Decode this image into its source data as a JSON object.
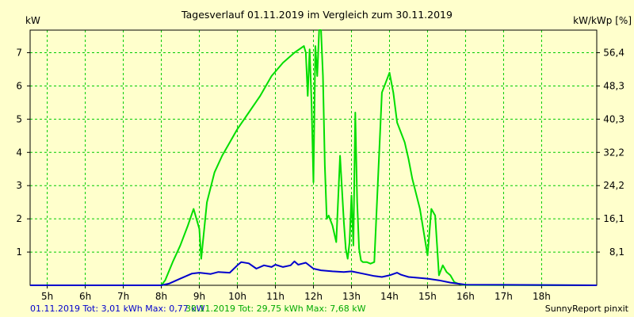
{
  "chart_data": {
    "type": "line",
    "title": "Tagesverlauf 01.11.2019 im Vergleich zum 30.11.2019",
    "ylabel_left": "kW",
    "ylabel_right": "kW/kWp [%]",
    "x_ticks": [
      "5h",
      "6h",
      "7h",
      "8h",
      "9h",
      "10h",
      "11h",
      "12h",
      "13h",
      "14h",
      "15h",
      "16h",
      "17h",
      "18h"
    ],
    "y_ticks_left": [
      "1",
      "2",
      "3",
      "4",
      "5",
      "6",
      "7"
    ],
    "y_ticks_right": [
      "8,1",
      "16,1",
      "24,2",
      "32,2",
      "40,3",
      "48,3",
      "56,4"
    ],
    "xlim": [
      4.55,
      19.45
    ],
    "ylim": [
      0,
      7.68
    ],
    "grid": true,
    "series": [
      {
        "name": "01.11.2019",
        "color": "#0000cc",
        "x": [
          4.55,
          8.0,
          8.2,
          8.5,
          8.8,
          9.0,
          9.3,
          9.5,
          9.8,
          10.0,
          10.1,
          10.3,
          10.5,
          10.7,
          10.9,
          11.0,
          11.2,
          11.4,
          11.5,
          11.6,
          11.8,
          12.0,
          12.2,
          12.5,
          12.8,
          13.0,
          13.3,
          13.6,
          13.8,
          14.0,
          14.2,
          14.3,
          14.5,
          14.8,
          15.0,
          15.3,
          15.6,
          15.8,
          16.0,
          19.45
        ],
        "y": [
          0,
          0,
          0.05,
          0.2,
          0.35,
          0.38,
          0.34,
          0.4,
          0.38,
          0.6,
          0.7,
          0.66,
          0.5,
          0.6,
          0.55,
          0.62,
          0.55,
          0.6,
          0.72,
          0.62,
          0.68,
          0.5,
          0.45,
          0.42,
          0.4,
          0.42,
          0.35,
          0.28,
          0.25,
          0.3,
          0.38,
          0.32,
          0.25,
          0.22,
          0.2,
          0.15,
          0.08,
          0.05,
          0.02,
          0
        ]
      },
      {
        "name": "30.11.2019",
        "color": "#00dd00",
        "x": [
          4.55,
          8.0,
          8.1,
          8.3,
          8.5,
          8.7,
          8.85,
          9.0,
          9.05,
          9.2,
          9.4,
          9.6,
          9.8,
          10.0,
          10.3,
          10.6,
          10.9,
          11.2,
          11.5,
          11.75,
          11.8,
          11.85,
          11.9,
          11.95,
          12.0,
          12.05,
          12.1,
          12.15,
          12.2,
          12.25,
          12.3,
          12.35,
          12.4,
          12.5,
          12.6,
          12.7,
          12.8,
          12.85,
          12.9,
          12.95,
          13.0,
          13.05,
          13.1,
          13.15,
          13.2,
          13.25,
          13.3,
          13.35,
          13.4,
          13.5,
          13.6,
          13.8,
          14.0,
          14.1,
          14.2,
          14.3,
          14.4,
          14.5,
          14.6,
          14.8,
          15.0,
          15.1,
          15.2,
          15.25,
          15.3,
          15.4,
          15.5,
          15.6,
          15.7,
          15.8,
          15.9,
          16.0,
          19.45
        ],
        "y": [
          0,
          0,
          0.15,
          0.7,
          1.2,
          1.8,
          2.3,
          1.7,
          0.8,
          2.5,
          3.4,
          3.9,
          4.3,
          4.7,
          5.2,
          5.7,
          6.3,
          6.7,
          7.0,
          7.2,
          7.0,
          5.7,
          7.1,
          5.5,
          3.1,
          7.2,
          6.3,
          7.68,
          7.68,
          6.3,
          3.6,
          2.0,
          2.1,
          1.8,
          1.3,
          3.9,
          1.9,
          1.1,
          0.8,
          1.3,
          2.7,
          1.2,
          5.2,
          2.5,
          1.1,
          0.75,
          0.7,
          0.7,
          0.7,
          0.65,
          0.7,
          5.8,
          6.4,
          5.8,
          4.9,
          4.6,
          4.3,
          3.8,
          3.2,
          2.3,
          0.9,
          2.3,
          2.1,
          1.2,
          0.3,
          0.6,
          0.4,
          0.3,
          0.1,
          0.05,
          0.02,
          0.01,
          0
        ]
      }
    ]
  },
  "footer": {
    "legend_blue": "01.11.2019 Tot: 3,01 kWh Max: 0,77 kW",
    "legend_green": "30.11.2019 Tot: 29,75 kWh Max: 7,68 kW",
    "brand": "SunnyReport pinxit"
  },
  "colors": {
    "background": "#ffffcc",
    "grid": "#00cc00",
    "axis": "#000000"
  }
}
